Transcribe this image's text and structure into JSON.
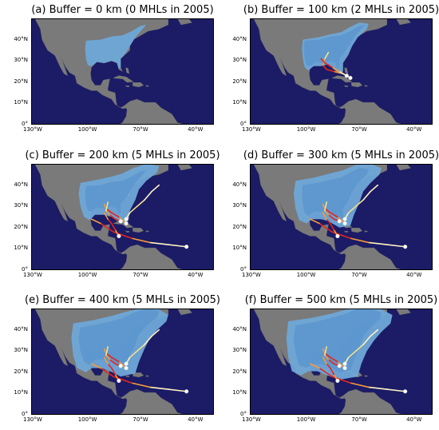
{
  "colors": {
    "ocean": "#1b1b66",
    "land": "#7a7a7a",
    "buffer": "#6fa8d8",
    "buffer_inner": "#5d97cf",
    "track_red": "#e8251c",
    "track_orange": "#f59a3a",
    "track_yellow": "#f7e08a",
    "track_pale": "#fff2c0",
    "marker": "#ffffff"
  },
  "chart_data": [
    {
      "type": "map",
      "title": "(a) Buffer = 0 km (0 MHLs in 2005)",
      "buffer_km": 0,
      "mhl_count": 0,
      "year": 2005,
      "x_ticks": [
        "130°W",
        "100°W",
        "70°W",
        "40°W"
      ],
      "y_ticks": [
        "0°",
        "10°N",
        "20°N",
        "30°N",
        "40°N"
      ],
      "xlim": [
        -130,
        -30
      ],
      "ylim": [
        0,
        50
      ],
      "tracks": []
    },
    {
      "type": "map",
      "title": "(b) Buffer = 100 km (2 MHLs in 2005)",
      "buffer_km": 100,
      "mhl_count": 2,
      "year": 2005,
      "x_ticks": [
        "130°W",
        "100°W",
        "70°W",
        "40°W"
      ],
      "y_ticks": [
        "0°",
        "10°N",
        "20°N",
        "30°N",
        "40°N"
      ],
      "xlim": [
        -130,
        -30
      ],
      "ylim": [
        0,
        50
      ],
      "tracks": [
        {
          "lon": [
            -75,
            -79,
            -84,
            -88,
            -90,
            -89,
            -87
          ],
          "lat": [
            22,
            24,
            25,
            26,
            28,
            31,
            34
          ],
          "colors": [
            "pale",
            "pale",
            "orange",
            "red",
            "red",
            "orange",
            "yellow"
          ]
        },
        {
          "lon": [
            -77,
            -81,
            -85,
            -89,
            -91
          ],
          "lat": [
            23,
            25,
            27,
            29,
            31
          ],
          "colors": [
            "pale",
            "pale",
            "orange",
            "red",
            "red"
          ]
        }
      ]
    },
    {
      "type": "map",
      "title": "(c) Buffer = 200 km (5 MHLs in 2005)",
      "buffer_km": 200,
      "mhl_count": 5,
      "year": 2005,
      "x_ticks": [
        "130°W",
        "100°W",
        "70°W",
        "40°W"
      ],
      "y_ticks": [
        "0°",
        "10°N",
        "20°N",
        "30°N",
        "40°N"
      ],
      "xlim": [
        -130,
        -30
      ],
      "ylim": [
        0,
        50
      ],
      "tracks": [
        {
          "lon": [
            -45,
            -55,
            -65,
            -75,
            -85,
            -92,
            -97
          ],
          "lat": [
            11,
            12,
            13,
            15,
            18,
            22,
            24
          ],
          "colors": [
            "pale",
            "pale",
            "pale",
            "orange",
            "red",
            "red",
            "orange"
          ]
        },
        {
          "lon": [
            -78,
            -82,
            -86,
            -89,
            -90
          ],
          "lat": [
            22,
            25,
            27,
            29,
            31
          ],
          "colors": [
            "pale",
            "orange",
            "red",
            "red",
            "orange"
          ]
        },
        {
          "lon": [
            -81,
            -84,
            -87,
            -89,
            -88
          ],
          "lat": [
            23,
            24,
            26,
            28,
            32
          ],
          "colors": [
            "pale",
            "red",
            "red",
            "orange",
            "yellow"
          ]
        },
        {
          "lon": [
            -82,
            -84,
            -86,
            -88,
            -90
          ],
          "lat": [
            16,
            19,
            22,
            24,
            27
          ],
          "colors": [
            "pale",
            "orange",
            "red",
            "red",
            "orange"
          ]
        },
        {
          "lon": [
            -78,
            -76,
            -72,
            -68,
            -64,
            -60
          ],
          "lat": [
            24,
            27,
            30,
            33,
            37,
            40
          ],
          "colors": [
            "pale",
            "pale",
            "yellow",
            "yellow",
            "pale",
            "pale"
          ]
        }
      ]
    },
    {
      "type": "map",
      "title": "(d) Buffer = 300 km (5 MHLs in 2005)",
      "buffer_km": 300,
      "mhl_count": 5,
      "year": 2005,
      "x_ticks": [
        "130°W",
        "100°W",
        "70°W",
        "40°W"
      ],
      "y_ticks": [
        "0°",
        "10°N",
        "20°N",
        "30°N",
        "40°N"
      ],
      "xlim": [
        -130,
        -30
      ],
      "ylim": [
        0,
        50
      ],
      "tracks": [
        {
          "lon": [
            -45,
            -55,
            -65,
            -75,
            -85,
            -92,
            -97
          ],
          "lat": [
            11,
            12,
            13,
            15,
            18,
            22,
            24
          ],
          "colors": [
            "pale",
            "pale",
            "pale",
            "orange",
            "red",
            "red",
            "orange"
          ]
        },
        {
          "lon": [
            -78,
            -82,
            -86,
            -89,
            -90
          ],
          "lat": [
            22,
            25,
            27,
            29,
            31
          ],
          "colors": [
            "pale",
            "orange",
            "red",
            "red",
            "orange"
          ]
        },
        {
          "lon": [
            -81,
            -84,
            -87,
            -89,
            -88
          ],
          "lat": [
            23,
            24,
            26,
            28,
            32
          ],
          "colors": [
            "pale",
            "red",
            "red",
            "orange",
            "yellow"
          ]
        },
        {
          "lon": [
            -82,
            -84,
            -86,
            -88,
            -90
          ],
          "lat": [
            16,
            19,
            22,
            24,
            27
          ],
          "colors": [
            "pale",
            "orange",
            "red",
            "red",
            "orange"
          ]
        },
        {
          "lon": [
            -78,
            -76,
            -72,
            -68,
            -64,
            -60
          ],
          "lat": [
            24,
            27,
            30,
            33,
            37,
            40
          ],
          "colors": [
            "pale",
            "pale",
            "yellow",
            "yellow",
            "pale",
            "pale"
          ]
        }
      ]
    },
    {
      "type": "map",
      "title": "(e) Buffer = 400 km (5 MHLs in 2005)",
      "buffer_km": 400,
      "mhl_count": 5,
      "year": 2005,
      "x_ticks": [
        "130°W",
        "100°W",
        "70°W",
        "40°W"
      ],
      "y_ticks": [
        "0°",
        "10°N",
        "20°N",
        "30°N",
        "40°N"
      ],
      "xlim": [
        -130,
        -30
      ],
      "ylim": [
        0,
        50
      ],
      "tracks": [
        {
          "lon": [
            -45,
            -55,
            -65,
            -75,
            -85,
            -92,
            -97
          ],
          "lat": [
            11,
            12,
            13,
            15,
            18,
            22,
            24
          ],
          "colors": [
            "pale",
            "pale",
            "pale",
            "orange",
            "red",
            "red",
            "orange"
          ]
        },
        {
          "lon": [
            -78,
            -82,
            -86,
            -89,
            -90
          ],
          "lat": [
            22,
            25,
            27,
            29,
            31
          ],
          "colors": [
            "pale",
            "orange",
            "red",
            "red",
            "orange"
          ]
        },
        {
          "lon": [
            -81,
            -84,
            -87,
            -89,
            -88
          ],
          "lat": [
            23,
            24,
            26,
            28,
            32
          ],
          "colors": [
            "pale",
            "red",
            "red",
            "orange",
            "yellow"
          ]
        },
        {
          "lon": [
            -82,
            -84,
            -86,
            -88,
            -90
          ],
          "lat": [
            16,
            19,
            22,
            24,
            27
          ],
          "colors": [
            "pale",
            "orange",
            "red",
            "red",
            "orange"
          ]
        },
        {
          "lon": [
            -78,
            -76,
            -72,
            -68,
            -64,
            -60
          ],
          "lat": [
            24,
            27,
            30,
            33,
            37,
            40
          ],
          "colors": [
            "pale",
            "pale",
            "yellow",
            "yellow",
            "pale",
            "pale"
          ]
        }
      ]
    },
    {
      "type": "map",
      "title": "(f) Buffer = 500 km (5 MHLs in 2005)",
      "buffer_km": 500,
      "mhl_count": 5,
      "year": 2005,
      "x_ticks": [
        "130°W",
        "100°W",
        "70°W",
        "40°W"
      ],
      "y_ticks": [
        "0°",
        "10°N",
        "20°N",
        "30°N",
        "40°N"
      ],
      "xlim": [
        -130,
        -30
      ],
      "ylim": [
        0,
        50
      ],
      "tracks": [
        {
          "lon": [
            -45,
            -55,
            -65,
            -75,
            -85,
            -92,
            -97
          ],
          "lat": [
            11,
            12,
            13,
            15,
            18,
            22,
            24
          ],
          "colors": [
            "pale",
            "pale",
            "pale",
            "orange",
            "red",
            "red",
            "orange"
          ]
        },
        {
          "lon": [
            -78,
            -82,
            -86,
            -89,
            -90
          ],
          "lat": [
            22,
            25,
            27,
            29,
            31
          ],
          "colors": [
            "pale",
            "orange",
            "red",
            "red",
            "orange"
          ]
        },
        {
          "lon": [
            -81,
            -84,
            -87,
            -89,
            -88
          ],
          "lat": [
            23,
            24,
            26,
            28,
            32
          ],
          "colors": [
            "pale",
            "red",
            "red",
            "orange",
            "yellow"
          ]
        },
        {
          "lon": [
            -82,
            -84,
            -86,
            -88,
            -90
          ],
          "lat": [
            16,
            19,
            22,
            24,
            27
          ],
          "colors": [
            "pale",
            "orange",
            "red",
            "red",
            "orange"
          ]
        },
        {
          "lon": [
            -78,
            -76,
            -72,
            -68,
            -64,
            -60
          ],
          "lat": [
            24,
            27,
            30,
            33,
            37,
            40
          ],
          "colors": [
            "pale",
            "pale",
            "yellow",
            "yellow",
            "pale",
            "pale"
          ]
        }
      ]
    }
  ]
}
